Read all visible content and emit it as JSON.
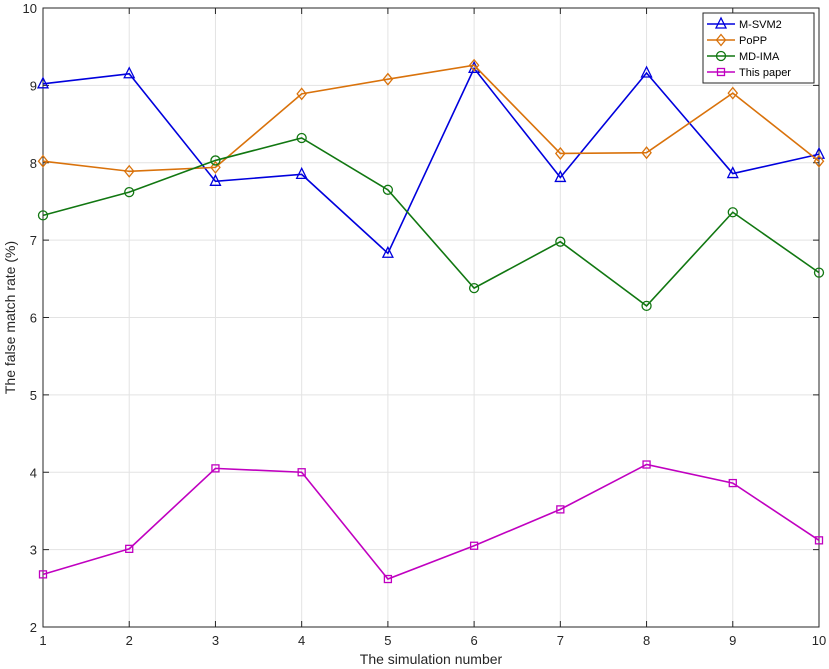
{
  "chart_data": {
    "type": "line",
    "xlabel": "The simulation number",
    "ylabel": "The false match rate (%)",
    "x": [
      1,
      2,
      3,
      4,
      5,
      6,
      7,
      8,
      9,
      10
    ],
    "xlim": [
      1,
      10
    ],
    "ylim": [
      2,
      10
    ],
    "xticks": [
      "1",
      "2",
      "3",
      "4",
      "5",
      "6",
      "7",
      "8",
      "9",
      "10"
    ],
    "yticks": [
      "2",
      "3",
      "4",
      "5",
      "6",
      "7",
      "8",
      "9",
      "10"
    ],
    "grid": true,
    "legend_position": "top-right",
    "series": [
      {
        "name": "M-SVM2",
        "color": "#0000dd",
        "marker": "triangle",
        "values": [
          9.02,
          9.15,
          7.76,
          7.85,
          6.83,
          9.22,
          7.81,
          9.16,
          7.86,
          8.11
        ]
      },
      {
        "name": "PoPP",
        "color": "#d9720b",
        "marker": "diamond",
        "values": [
          8.02,
          7.89,
          7.94,
          8.89,
          9.08,
          9.26,
          8.12,
          8.13,
          8.9,
          8.02
        ]
      },
      {
        "name": "MD-IMA",
        "color": "#117711",
        "marker": "circle",
        "values": [
          7.32,
          7.62,
          8.03,
          8.32,
          7.65,
          6.38,
          6.98,
          6.15,
          7.36,
          6.58
        ]
      },
      {
        "name": "This paper",
        "color": "#c000c0",
        "marker": "square",
        "values": [
          2.68,
          3.01,
          4.05,
          4.0,
          2.62,
          3.05,
          3.52,
          4.1,
          3.86,
          3.12
        ]
      }
    ]
  }
}
